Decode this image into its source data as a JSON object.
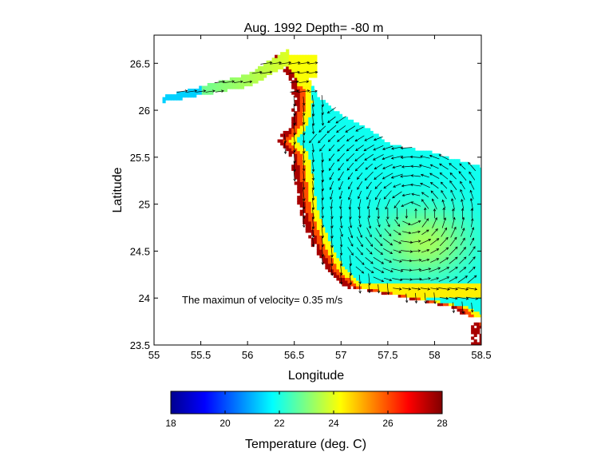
{
  "chart_data": {
    "type": "heatmap",
    "title": "Aug. 1992  Depth= -80 m",
    "xlabel": "Longitude",
    "ylabel": "Latitude",
    "xlim": [
      55,
      58.5
    ],
    "ylim": [
      23.5,
      26.8
    ],
    "xticks": [
      "55",
      "55.5",
      "56",
      "56.5",
      "57",
      "57.5",
      "58",
      "58.5"
    ],
    "xtick_values": [
      55,
      55.5,
      56,
      56.5,
      57,
      57.5,
      58,
      58.5
    ],
    "yticks": [
      "23.5",
      "24",
      "24.5",
      "25",
      "25.5",
      "26",
      "26.5"
    ],
    "ytick_values": [
      23.5,
      24,
      24.5,
      25,
      25.5,
      26,
      26.5
    ],
    "grid": false,
    "annotation": "The maximun of velocity= 0.35 m/s",
    "field": "sea temperature with velocity vectors",
    "colorbar": {
      "label": "Temperature (deg. C)",
      "range": [
        18,
        28
      ],
      "ticks": [
        "18",
        "20",
        "22",
        "24",
        "26",
        "28"
      ],
      "tick_values": [
        18,
        20,
        22,
        24,
        26,
        28
      ],
      "colormap": "jet"
    },
    "max_velocity_ms": 0.35,
    "regions": [
      {
        "name": "western strait arm",
        "lon": [
          55.1,
          56.0
        ],
        "lat": [
          26.0,
          26.25
        ],
        "temperature": 21.5
      },
      {
        "name": "northern tip",
        "lon": [
          56.1,
          56.6
        ],
        "lat": [
          26.3,
          26.6
        ],
        "temperature": 24.0
      },
      {
        "name": "coastal warm band",
        "lon": [
          56.4,
          56.7
        ],
        "lat": [
          24.2,
          26.4
        ],
        "temperature": 27.3
      },
      {
        "name": "open gulf interior",
        "lon": [
          56.8,
          58.5
        ],
        "lat": [
          24.2,
          25.8
        ],
        "temperature": 21.8
      },
      {
        "name": "southern coastal band",
        "lon": [
          57.0,
          58.5
        ],
        "lat": [
          23.9,
          24.1
        ],
        "temperature": 24.3
      }
    ]
  }
}
